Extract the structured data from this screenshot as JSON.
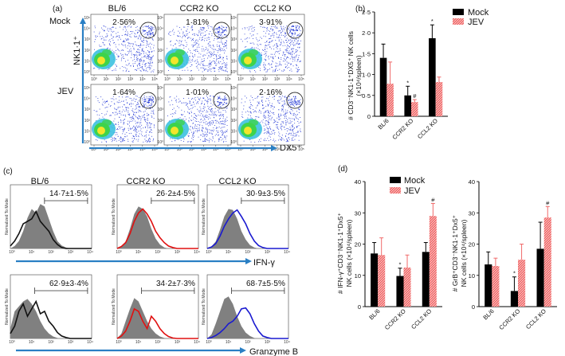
{
  "panel_a": {
    "label": "(a)",
    "columns": [
      "BL/6",
      "CCR2 KO",
      "CCL2 KO"
    ],
    "rows": [
      "Mock",
      "JEV"
    ],
    "percentages": [
      [
        "2·56%",
        "1·81%",
        "3·91%"
      ],
      [
        "1·64%",
        "1·01%",
        "2·16%"
      ]
    ],
    "y_axis_label": "NK1·1⁺",
    "x_axis_label": "DX5⁺"
  },
  "panel_b": {
    "label": "(b)",
    "ylabel_lines": [
      "# CD3⁻NK1·1⁺DX5⁺ NK cells",
      "(×10⁴/spleen)"
    ]
  },
  "panel_c": {
    "label": "(c)",
    "columns": [
      "BL/6",
      "CCR2 KO",
      "CCL2 KO"
    ],
    "row1_values": [
      "14·7±1·5%",
      "26·2±4·5%",
      "30·9±3·5%"
    ],
    "row2_values": [
      "62·9±3·4%",
      "34·2±7·3%",
      "68·7±5·5%"
    ],
    "y_small_label": "Normalized To Mode",
    "x_tick_labels": [
      "10⁰",
      "10¹",
      "10²",
      "10³",
      "10⁴"
    ],
    "row1_marker": "IFN-γ",
    "row2_marker": "Granzyme B",
    "line_colors": [
      "#111111",
      "#e01010",
      "#1a1ad0"
    ]
  },
  "panel_d": {
    "label": "(d)",
    "left_ylabel_lines": [
      "# IFN-γ⁺CD3⁻NK1·1⁺Dx5⁺",
      "NK cells (×10⁴/spleen)"
    ],
    "right_ylabel_lines": [
      "# GrB⁺CD3⁻NK1·1⁺Dx5⁺",
      "NK cells (×10⁴/spleen)"
    ]
  },
  "legend": {
    "mock": "Mock",
    "jev": "JEV"
  },
  "colors": {
    "mock": "#000000",
    "jev": "#f06a6a",
    "arrow": "#2a7fc4",
    "gate": "#333333"
  },
  "chart_data": [
    {
      "id": "b",
      "type": "bar",
      "categories": [
        "BL/6",
        "CCR2 KO",
        "CCL2 KO"
      ],
      "ylim": [
        0,
        2.5
      ],
      "yticks": [
        0,
        0.5,
        1,
        1.5,
        2,
        2.5
      ],
      "ytick_labels": [
        "0",
        "0·5",
        "1·0",
        "1·5",
        "2·0",
        "2·5"
      ],
      "series": [
        {
          "name": "Mock",
          "values": [
            1.4,
            0.5,
            1.87
          ],
          "errors": [
            0.33,
            0.22,
            0.32
          ]
        },
        {
          "name": "JEV",
          "values": [
            0.78,
            0.34,
            0.82
          ],
          "errors": [
            0.52,
            0.06,
            0.12
          ]
        }
      ],
      "annotations": [
        {
          "text": "*",
          "category": 1,
          "series": 0
        },
        {
          "text": "#",
          "category": 1,
          "series": 1
        },
        {
          "text": "*",
          "category": 2,
          "series": 0
        }
      ]
    },
    {
      "id": "d_ifn",
      "type": "bar",
      "categories": [
        "BL/6",
        "CCR2 KO",
        "CCL2 KO"
      ],
      "ylim": [
        0,
        40
      ],
      "yticks": [
        0,
        10,
        20,
        30,
        40
      ],
      "ytick_labels": [
        "0",
        "10",
        "20",
        "30",
        "40"
      ],
      "series": [
        {
          "name": "Mock",
          "values": [
            17,
            9.8,
            17.5
          ],
          "errors": [
            3.5,
            2.5,
            3
          ]
        },
        {
          "name": "JEV",
          "values": [
            16.5,
            12.5,
            29
          ],
          "errors": [
            5.5,
            4,
            4
          ]
        }
      ],
      "annotations": [
        {
          "text": "*",
          "category": 1,
          "series": 0
        },
        {
          "text": "#",
          "category": 2,
          "series": 1
        }
      ]
    },
    {
      "id": "d_grb",
      "type": "bar",
      "categories": [
        "BL/6",
        "CCR2 KO",
        "CCL2 KO"
      ],
      "ylim": [
        0,
        40
      ],
      "yticks": [
        0,
        10,
        20,
        30,
        40
      ],
      "ytick_labels": [
        "0",
        "10",
        "20",
        "30",
        "40"
      ],
      "series": [
        {
          "name": "Mock",
          "values": [
            13.5,
            5,
            18.5
          ],
          "errors": [
            4,
            4.5,
            8.5
          ]
        },
        {
          "name": "JEV",
          "values": [
            13,
            15,
            28.5
          ],
          "errors": [
            2.5,
            5,
            3.5
          ]
        }
      ],
      "annotations": [
        {
          "text": "*",
          "category": 1,
          "series": 0
        },
        {
          "text": "#",
          "category": 2,
          "series": 1
        }
      ]
    }
  ]
}
